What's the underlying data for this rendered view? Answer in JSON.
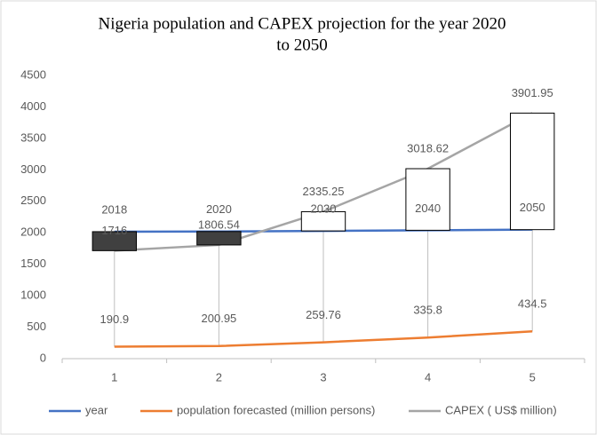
{
  "chart_data": {
    "type": "line",
    "title": [
      "Nigeria population  and CAPEX projection  for the year 2020",
      "to 2050"
    ],
    "categories": [
      "1",
      "2",
      "3",
      "4",
      "5"
    ],
    "series": [
      {
        "name": "year",
        "color": "#4472c4",
        "values": [
          2018,
          2020,
          2030,
          2040,
          2050
        ]
      },
      {
        "name": "population forecasted (million persons)",
        "color": "#ed7d31",
        "values": [
          190.9,
          200.95,
          259.76,
          335.8,
          434.5
        ]
      },
      {
        "name": "CAPEX ( US$ million)",
        "color": "#a5a5a5",
        "values": [
          1716,
          1806.54,
          2335.25,
          3018.62,
          3901.95
        ]
      }
    ],
    "ylim": [
      0,
      4500
    ],
    "yticks": [
      0,
      500,
      1000,
      1500,
      2000,
      2500,
      3000,
      3500,
      4000,
      4500
    ],
    "grid": false,
    "data_labels": true,
    "up_down_bars": {
      "up_color": "#ffffff",
      "down_color": "#404040"
    },
    "hi_low_lines": true,
    "legend": "bottom"
  }
}
